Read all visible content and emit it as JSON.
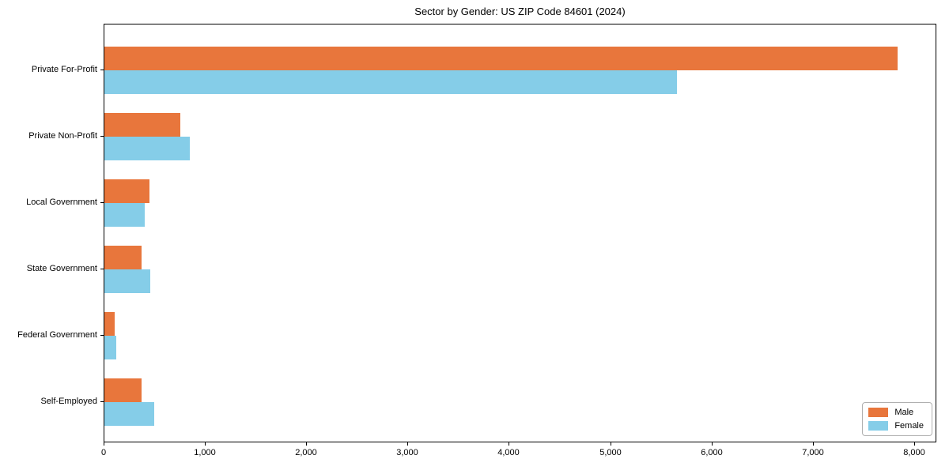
{
  "title": "Sector by Gender: US ZIP Code 84601 (2024)",
  "chart_data": {
    "type": "bar",
    "orientation": "horizontal",
    "title": "Sector by Gender: US ZIP Code 84601 (2024)",
    "categories": [
      "Private For-Profit",
      "Private Non-Profit",
      "Local Government",
      "State Government",
      "Federal Government",
      "Self-Employed"
    ],
    "series": [
      {
        "name": "Male",
        "color": "#e8763c",
        "values": [
          7830,
          750,
          445,
          370,
          100,
          370
        ]
      },
      {
        "name": "Female",
        "color": "#85cde8",
        "values": [
          5650,
          845,
          400,
          450,
          120,
          495
        ]
      }
    ],
    "xlabel": "",
    "ylabel": "",
    "xlim": [
      0,
      8220
    ],
    "xticks": [
      0,
      1000,
      2000,
      3000,
      4000,
      5000,
      6000,
      7000,
      8000
    ],
    "xtick_labels": [
      "0",
      "1,000",
      "2,000",
      "3,000",
      "4,000",
      "5,000",
      "6,000",
      "7,000",
      "8,000"
    ],
    "legend_position": "lower right",
    "grid": false
  }
}
